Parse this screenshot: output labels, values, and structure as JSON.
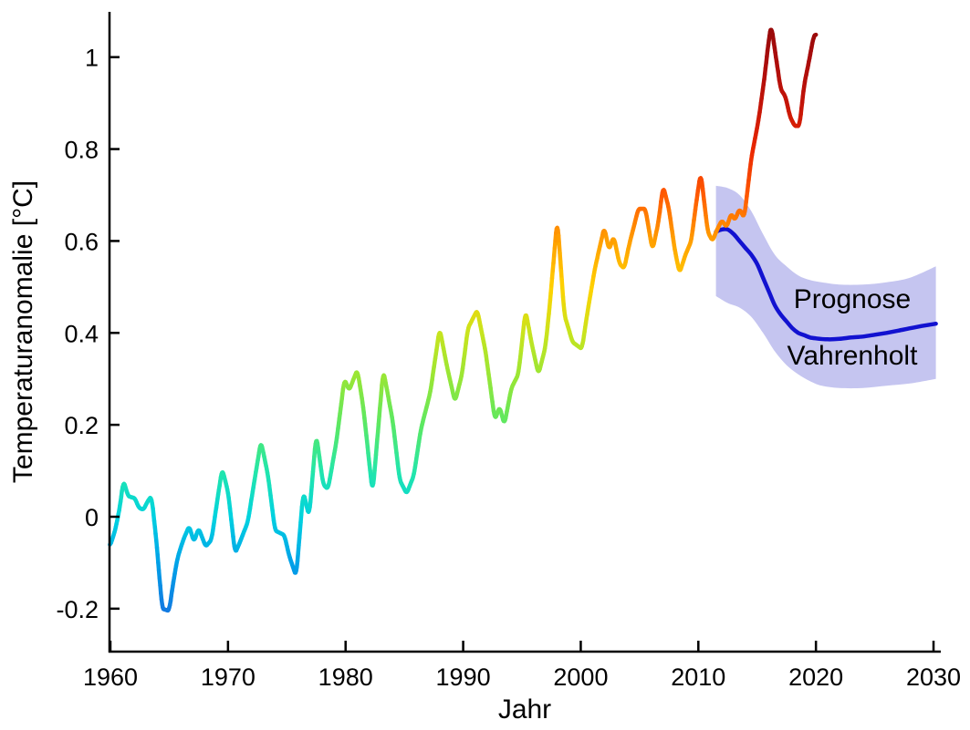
{
  "figure": {
    "background": "#ffffff"
  },
  "chart_data": {
    "type": "line",
    "title": "",
    "xlabel": "Jahr",
    "ylabel": "Temperaturanomalie [°C]",
    "xlim": [
      1959.9,
      2030.6
    ],
    "ylim": [
      -0.3,
      1.1
    ],
    "grid": false,
    "axis_color": "#000000",
    "x_ticks": {
      "values": [
        1960,
        1970,
        1980,
        1990,
        2000,
        2010,
        2020,
        2030
      ],
      "labels": [
        "1960",
        "1970",
        "1980",
        "1990",
        "2000",
        "2010",
        "2020",
        "2030"
      ]
    },
    "y_ticks": {
      "values": [
        -0.2,
        0,
        0.2,
        0.4,
        0.6,
        0.8,
        1
      ],
      "labels": [
        "-0.2",
        "0",
        "0.2",
        "0.4",
        "0.6",
        "0.8",
        "1"
      ]
    },
    "series": [
      {
        "name": "observed-temperature-anomaly",
        "style": "value-colored",
        "x": [
          1959.95,
          1960.4,
          1960.8,
          1961.1,
          1961.5,
          1962.1,
          1962.4,
          1962.8,
          1963.2,
          1963.5,
          1963.9,
          1964.4,
          1965.0,
          1965.3,
          1965.7,
          1966.2,
          1966.7,
          1967.1,
          1967.5,
          1968.1,
          1968.6,
          1969.0,
          1969.5,
          1970.0,
          1970.6,
          1971.1,
          1971.7,
          1972.1,
          1972.8,
          1973.4,
          1974.0,
          1974.4,
          1974.8,
          1975.2,
          1975.8,
          1976.4,
          1976.9,
          1977.5,
          1978.1,
          1978.5,
          1979.2,
          1979.9,
          1980.3,
          1981.0,
          1981.5,
          1982.3,
          1983.2,
          1984.0,
          1984.6,
          1985.2,
          1985.8,
          1986.4,
          1987.2,
          1988.0,
          1988.6,
          1989.3,
          1989.9,
          1990.4,
          1991.2,
          1991.9,
          1992.7,
          1993.1,
          1993.5,
          1994.1,
          1994.7,
          1995.3,
          1995.8,
          1996.4,
          1997.0,
          1997.4,
          1998.0,
          1998.6,
          1999.3,
          2000.1,
          2000.6,
          2001.2,
          2002.0,
          2002.4,
          2002.8,
          2003.3,
          2003.7,
          2004.1,
          2004.9,
          2005.5,
          2006.1,
          2006.6,
          2007.0,
          2007.5,
          2008.0,
          2008.4,
          2008.9,
          2009.4,
          2009.8,
          2010.2,
          2010.8,
          2011.2,
          2011.6,
          2012.0,
          2012.4,
          2012.8,
          2013.1,
          2013.5,
          2013.9,
          2014.5,
          2015.1,
          2015.6,
          2016.0,
          2016.2,
          2016.6,
          2017.0,
          2017.4,
          2017.8,
          2018.2,
          2018.6,
          2019.0,
          2019.4,
          2019.8,
          2020.0
        ],
        "y": [
          -0.065,
          -0.03,
          0.02,
          0.08,
          0.045,
          0.04,
          0.02,
          0.015,
          0.035,
          0.045,
          -0.05,
          -0.2,
          -0.205,
          -0.15,
          -0.09,
          -0.05,
          -0.02,
          -0.055,
          -0.025,
          -0.065,
          -0.05,
          0.02,
          0.105,
          0.055,
          -0.08,
          -0.05,
          -0.01,
          0.055,
          0.165,
          0.09,
          -0.03,
          -0.035,
          -0.04,
          -0.085,
          -0.13,
          0.055,
          0.0,
          0.18,
          0.07,
          0.06,
          0.16,
          0.3,
          0.275,
          0.32,
          0.24,
          0.05,
          0.32,
          0.21,
          0.08,
          0.05,
          0.09,
          0.19,
          0.27,
          0.41,
          0.33,
          0.25,
          0.31,
          0.41,
          0.45,
          0.36,
          0.21,
          0.24,
          0.2,
          0.28,
          0.31,
          0.45,
          0.38,
          0.31,
          0.37,
          0.47,
          0.65,
          0.44,
          0.38,
          0.365,
          0.45,
          0.54,
          0.63,
          0.58,
          0.61,
          0.55,
          0.54,
          0.59,
          0.67,
          0.67,
          0.58,
          0.64,
          0.72,
          0.67,
          0.58,
          0.53,
          0.57,
          0.6,
          0.68,
          0.75,
          0.62,
          0.6,
          0.625,
          0.645,
          0.63,
          0.66,
          0.645,
          0.67,
          0.65,
          0.78,
          0.86,
          0.95,
          1.04,
          1.07,
          1.0,
          0.93,
          0.915,
          0.87,
          0.85,
          0.85,
          0.94,
          0.99,
          1.045,
          1.05
        ]
      },
      {
        "name": "prognose-vahrenholt-forecast",
        "color": "#1212d0",
        "x": [
          2011.5,
          2012.0,
          2012.5,
          2013.0,
          2013.5,
          2014.0,
          2014.5,
          2015.0,
          2015.5,
          2016.0,
          2016.5,
          2017.0,
          2017.5,
          2018.0,
          2018.5,
          2019.0,
          2019.5,
          2020.0,
          2021.0,
          2022.0,
          2023.0,
          2024.0,
          2025.0,
          2026.0,
          2027.0,
          2028.0,
          2029.0,
          2030.2
        ],
        "y": [
          0.62,
          0.625,
          0.625,
          0.615,
          0.6,
          0.585,
          0.57,
          0.55,
          0.52,
          0.49,
          0.46,
          0.44,
          0.425,
          0.41,
          0.4,
          0.395,
          0.39,
          0.388,
          0.386,
          0.387,
          0.39,
          0.392,
          0.396,
          0.4,
          0.405,
          0.41,
          0.415,
          0.42
        ]
      }
    ],
    "band": {
      "name": "forecast-uncertainty-band",
      "color": "#c5c5f0",
      "x": [
        2011.5,
        2012.5,
        2013.5,
        2014.5,
        2015.5,
        2016.5,
        2017.5,
        2018.5,
        2019.5,
        2020.5,
        2022.0,
        2024.0,
        2026.0,
        2028.0,
        2030.2
      ],
      "upper": [
        0.72,
        0.715,
        0.7,
        0.665,
        0.615,
        0.57,
        0.545,
        0.525,
        0.515,
        0.51,
        0.505,
        0.505,
        0.51,
        0.52,
        0.545
      ],
      "lower": [
        0.48,
        0.465,
        0.455,
        0.435,
        0.4,
        0.36,
        0.33,
        0.31,
        0.295,
        0.285,
        0.28,
        0.28,
        0.285,
        0.29,
        0.3
      ]
    },
    "colormap": [
      {
        "v": -0.21,
        "c": "#1478e1"
      },
      {
        "v": -0.1,
        "c": "#00a2e8"
      },
      {
        "v": 0.0,
        "c": "#00d2e0"
      },
      {
        "v": 0.1,
        "c": "#23e6aa"
      },
      {
        "v": 0.2,
        "c": "#5ae864"
      },
      {
        "v": 0.3,
        "c": "#96e637"
      },
      {
        "v": 0.4,
        "c": "#c8e41e"
      },
      {
        "v": 0.5,
        "c": "#ffd200"
      },
      {
        "v": 0.6,
        "c": "#ffa000"
      },
      {
        "v": 0.7,
        "c": "#ff5a00"
      },
      {
        "v": 0.8,
        "c": "#eb2800"
      },
      {
        "v": 0.9,
        "c": "#c31408"
      },
      {
        "v": 1.0,
        "c": "#a80c0c"
      },
      {
        "v": 1.07,
        "c": "#960a0a"
      }
    ],
    "annotations": [
      {
        "text": "Prognose",
        "x": 2023.0,
        "y": 0.475
      },
      {
        "text": "Vahrenholt",
        "x": 2023.0,
        "y": 0.353
      }
    ]
  }
}
